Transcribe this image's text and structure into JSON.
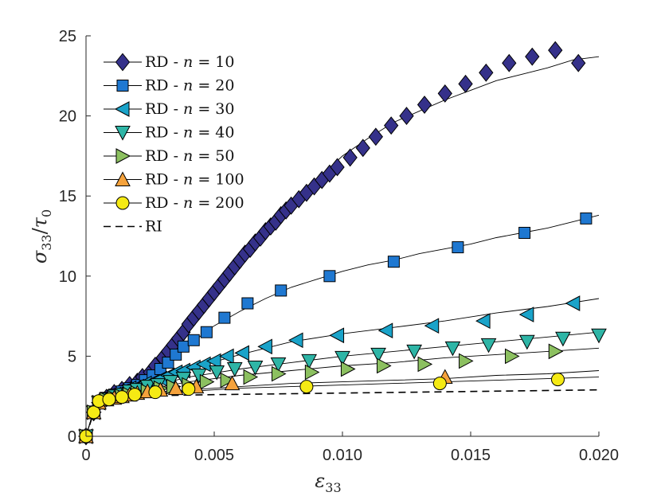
{
  "chart_data": {
    "type": "line",
    "title": "",
    "xlabel": "ε33",
    "ylabel": "σ33/τ0",
    "xlim": [
      0,
      0.02
    ],
    "ylim": [
      0,
      25
    ],
    "xticks": [
      0,
      0.005,
      0.01,
      0.015,
      0.02
    ],
    "xtick_labels": [
      "0",
      "0.005",
      "0.010",
      "0.015",
      "0.020"
    ],
    "yticks": [
      0,
      5,
      10,
      15,
      20,
      25
    ],
    "ytick_labels": [
      "0",
      "5",
      "10",
      "15",
      "20",
      "25"
    ],
    "grid": false,
    "legend_position": "top-left",
    "series": [
      {
        "name": "RD - n = 10",
        "marker": "diamond",
        "color": "#35318a",
        "line_x": [
          0,
          0.0003,
          0.001,
          0.002,
          0.003,
          0.004,
          0.005,
          0.006,
          0.007,
          0.008,
          0.009,
          0.01,
          0.011,
          0.012,
          0.013,
          0.014,
          0.015,
          0.016,
          0.017,
          0.018,
          0.019,
          0.02
        ],
        "line_y": [
          0,
          1.6,
          2.4,
          3.3,
          4.8,
          6.8,
          8.9,
          11.0,
          12.9,
          14.6,
          16.0,
          17.5,
          18.6,
          19.6,
          20.3,
          21.0,
          21.6,
          22.2,
          22.6,
          23.0,
          23.5,
          23.7
        ],
        "marker_x": [
          0,
          0.0003,
          0.0005,
          0.0008,
          0.0011,
          0.0014,
          0.0017,
          0.002,
          0.0022,
          0.0025,
          0.0027,
          0.003,
          0.0032,
          0.0034,
          0.0036,
          0.0038,
          0.004,
          0.0042,
          0.0044,
          0.0046,
          0.0048,
          0.005,
          0.0052,
          0.0054,
          0.0056,
          0.0058,
          0.006,
          0.0062,
          0.0064,
          0.0066,
          0.0068,
          0.007,
          0.0072,
          0.0074,
          0.0076,
          0.0078,
          0.008,
          0.0083,
          0.0086,
          0.0089,
          0.0092,
          0.0095,
          0.0098,
          0.0103,
          0.0108,
          0.0113,
          0.0119,
          0.0125,
          0.0132,
          0.014,
          0.0148,
          0.0156,
          0.0165,
          0.0174,
          0.0183,
          0.0192
        ],
        "marker_y": [
          0,
          1.5,
          2.1,
          2.4,
          2.7,
          2.9,
          3.2,
          3.4,
          3.7,
          4.0,
          4.4,
          4.9,
          5.3,
          5.7,
          6.1,
          6.5,
          7.0,
          7.4,
          7.8,
          8.2,
          8.6,
          9.0,
          9.4,
          9.8,
          10.2,
          10.6,
          11.0,
          11.4,
          11.7,
          12.1,
          12.4,
          12.8,
          13.1,
          13.4,
          13.8,
          14.1,
          14.4,
          14.8,
          15.2,
          15.6,
          16.0,
          16.4,
          16.8,
          17.4,
          18.0,
          18.7,
          19.4,
          20.0,
          20.7,
          21.4,
          22.0,
          22.7,
          23.3,
          23.7,
          24.1,
          23.3
        ]
      },
      {
        "name": "RD - n = 20",
        "marker": "square",
        "color": "#1f78d1",
        "line_x": [
          0,
          0.0003,
          0.001,
          0.002,
          0.003,
          0.004,
          0.005,
          0.006,
          0.007,
          0.008,
          0.009,
          0.01,
          0.011,
          0.012,
          0.013,
          0.014,
          0.015,
          0.016,
          0.017,
          0.018,
          0.019,
          0.02
        ],
        "line_y": [
          0,
          1.6,
          2.4,
          3.2,
          4.3,
          5.7,
          6.9,
          7.8,
          8.6,
          9.3,
          9.8,
          10.3,
          10.7,
          11.0,
          11.4,
          11.7,
          12.0,
          12.4,
          12.7,
          13.0,
          13.4,
          13.8
        ],
        "marker_x": [
          0,
          0.0003,
          0.0005,
          0.0008,
          0.0011,
          0.0014,
          0.0017,
          0.002,
          0.0023,
          0.0026,
          0.0029,
          0.0032,
          0.0035,
          0.0038,
          0.0042,
          0.0047,
          0.0054,
          0.0063,
          0.0076,
          0.0095,
          0.012,
          0.0145,
          0.0171,
          0.0195
        ],
        "marker_y": [
          0,
          1.5,
          2.1,
          2.4,
          2.6,
          2.8,
          3.0,
          3.2,
          3.5,
          3.8,
          4.2,
          4.6,
          5.1,
          5.6,
          6.0,
          6.5,
          7.4,
          8.3,
          9.1,
          10.0,
          10.9,
          11.8,
          12.7,
          13.6
        ]
      },
      {
        "name": "RD - n = 30",
        "marker": "triangle-left",
        "color": "#1aa3c9",
        "line_x": [
          0,
          0.0003,
          0.001,
          0.002,
          0.003,
          0.004,
          0.006,
          0.008,
          0.01,
          0.012,
          0.014,
          0.016,
          0.018,
          0.02
        ],
        "line_y": [
          0,
          1.6,
          2.3,
          3.0,
          3.6,
          4.2,
          5.1,
          5.9,
          6.4,
          6.8,
          7.2,
          7.7,
          8.1,
          8.6
        ],
        "marker_x": [
          0,
          0.0003,
          0.0005,
          0.0008,
          0.0011,
          0.0014,
          0.0017,
          0.002,
          0.0023,
          0.0026,
          0.0029,
          0.0032,
          0.0035,
          0.0038,
          0.0042,
          0.0046,
          0.005,
          0.0055,
          0.0061,
          0.007,
          0.0082,
          0.0098,
          0.0117,
          0.0135,
          0.0155,
          0.0172,
          0.019
        ],
        "marker_y": [
          0,
          1.5,
          2.1,
          2.4,
          2.6,
          2.8,
          3.0,
          3.1,
          3.3,
          3.4,
          3.6,
          3.8,
          4.0,
          4.1,
          4.3,
          4.5,
          4.7,
          5.0,
          5.2,
          5.6,
          6.0,
          6.3,
          6.6,
          6.9,
          7.2,
          7.6,
          8.3
        ]
      },
      {
        "name": "RD - n = 40",
        "marker": "triangle-down",
        "color": "#2eb5a6",
        "line_x": [
          0,
          0.0003,
          0.001,
          0.002,
          0.003,
          0.004,
          0.006,
          0.008,
          0.01,
          0.012,
          0.014,
          0.016,
          0.018,
          0.02
        ],
        "line_y": [
          0,
          1.6,
          2.3,
          2.9,
          3.3,
          3.7,
          4.2,
          4.6,
          5.0,
          5.3,
          5.6,
          5.9,
          6.2,
          6.5
        ],
        "marker_x": [
          0,
          0.0003,
          0.0005,
          0.0008,
          0.0011,
          0.0014,
          0.0017,
          0.002,
          0.0024,
          0.0028,
          0.0033,
          0.0038,
          0.0044,
          0.0051,
          0.0058,
          0.0066,
          0.0075,
          0.0087,
          0.01,
          0.0114,
          0.0128,
          0.0143,
          0.0157,
          0.0172,
          0.0186,
          0.02
        ],
        "marker_y": [
          0,
          1.5,
          2.1,
          2.3,
          2.5,
          2.6,
          2.8,
          2.9,
          3.1,
          3.2,
          3.4,
          3.6,
          3.8,
          4.0,
          4.2,
          4.3,
          4.5,
          4.7,
          4.9,
          5.1,
          5.3,
          5.5,
          5.7,
          5.9,
          6.1,
          6.3
        ]
      },
      {
        "name": "RD - n = 50",
        "marker": "triangle-right",
        "color": "#8cc060",
        "line_x": [
          0,
          0.0003,
          0.001,
          0.002,
          0.003,
          0.004,
          0.006,
          0.008,
          0.01,
          0.012,
          0.014,
          0.016,
          0.018,
          0.02
        ],
        "line_y": [
          0,
          1.6,
          2.3,
          2.8,
          3.1,
          3.4,
          3.8,
          4.1,
          4.4,
          4.6,
          4.9,
          5.1,
          5.3,
          5.5
        ],
        "marker_x": [
          0,
          0.0003,
          0.0005,
          0.0008,
          0.0011,
          0.0014,
          0.0017,
          0.002,
          0.0024,
          0.0029,
          0.0034,
          0.004,
          0.0047,
          0.0055,
          0.0064,
          0.0075,
          0.0088,
          0.0102,
          0.0116,
          0.0132,
          0.0148,
          0.0166,
          0.0183
        ],
        "marker_y": [
          0,
          1.5,
          2.1,
          2.3,
          2.4,
          2.5,
          2.6,
          2.7,
          2.8,
          3.0,
          3.1,
          3.2,
          3.4,
          3.5,
          3.7,
          3.9,
          4.0,
          4.2,
          4.4,
          4.5,
          4.7,
          5.0,
          5.3
        ]
      },
      {
        "name": "RD - n = 100",
        "marker": "triangle-up",
        "color": "#f5a23c",
        "line_x": [
          0,
          0.0003,
          0.001,
          0.002,
          0.003,
          0.004,
          0.006,
          0.008,
          0.01,
          0.012,
          0.014,
          0.016,
          0.018,
          0.02
        ],
        "line_y": [
          0,
          1.6,
          2.3,
          2.6,
          2.8,
          2.9,
          3.1,
          3.3,
          3.4,
          3.5,
          3.6,
          3.8,
          3.9,
          4.1
        ],
        "marker_x": [
          0,
          0.0003,
          0.0005,
          0.0008,
          0.0011,
          0.0014,
          0.0017,
          0.002,
          0.0024,
          0.0029,
          0.0035,
          0.0043,
          0.0057,
          0.014
        ],
        "marker_y": [
          0,
          1.5,
          2.1,
          2.3,
          2.4,
          2.5,
          2.6,
          2.7,
          2.8,
          2.9,
          3.0,
          3.1,
          3.3,
          3.7
        ]
      },
      {
        "name": "RD - n = 200",
        "marker": "circle",
        "color": "#f5ea14",
        "line_x": [
          0,
          0.0003,
          0.001,
          0.002,
          0.003,
          0.004,
          0.006,
          0.008,
          0.01,
          0.012,
          0.014,
          0.016,
          0.018,
          0.02
        ],
        "line_y": [
          0,
          1.6,
          2.2,
          2.5,
          2.7,
          2.8,
          3.0,
          3.1,
          3.2,
          3.3,
          3.4,
          3.5,
          3.6,
          3.7
        ],
        "marker_x": [
          0,
          0.0003,
          0.0005,
          0.0009,
          0.0014,
          0.0019,
          0.0027,
          0.004,
          0.0086,
          0.0138,
          0.0184
        ],
        "marker_y": [
          0,
          1.5,
          2.2,
          2.3,
          2.45,
          2.6,
          2.75,
          2.95,
          3.1,
          3.3,
          3.55
        ]
      },
      {
        "name": "RI",
        "marker": "none",
        "line_style": "dashed",
        "color": "#000000",
        "line_x": [
          0,
          0.0003,
          0.0006,
          0.001,
          0.002,
          0.003,
          0.005,
          0.01,
          0.015,
          0.02
        ],
        "line_y": [
          0,
          1.5,
          2.0,
          2.25,
          2.45,
          2.55,
          2.6,
          2.7,
          2.8,
          2.9
        ],
        "marker_x": [],
        "marker_y": []
      }
    ],
    "legend_entries": [
      {
        "label": "RD - n = 10",
        "prefix": "RD - ",
        "var": "n",
        "rest": " = 10"
      },
      {
        "label": "RD - n = 20",
        "prefix": "RD - ",
        "var": "n",
        "rest": " = 20"
      },
      {
        "label": "RD - n = 30",
        "prefix": "RD - ",
        "var": "n",
        "rest": " = 30"
      },
      {
        "label": "RD - n = 40",
        "prefix": "RD - ",
        "var": "n",
        "rest": " = 40"
      },
      {
        "label": "RD - n = 50",
        "prefix": "RD - ",
        "var": "n",
        "rest": " = 50"
      },
      {
        "label": "RD - n = 100",
        "prefix": "RD - ",
        "var": "n",
        "rest": " = 100"
      },
      {
        "label": "RD - n = 200",
        "prefix": "RD - ",
        "var": "n",
        "rest": " = 200"
      },
      {
        "label": "RI",
        "prefix": "RI",
        "var": "",
        "rest": ""
      }
    ],
    "axis_labels": {
      "x_main": "ε",
      "x_sub": "33",
      "y_main1": "σ",
      "y_sub1": "33",
      "y_slash": "/",
      "y_main2": "τ",
      "y_sub2": "0"
    }
  }
}
